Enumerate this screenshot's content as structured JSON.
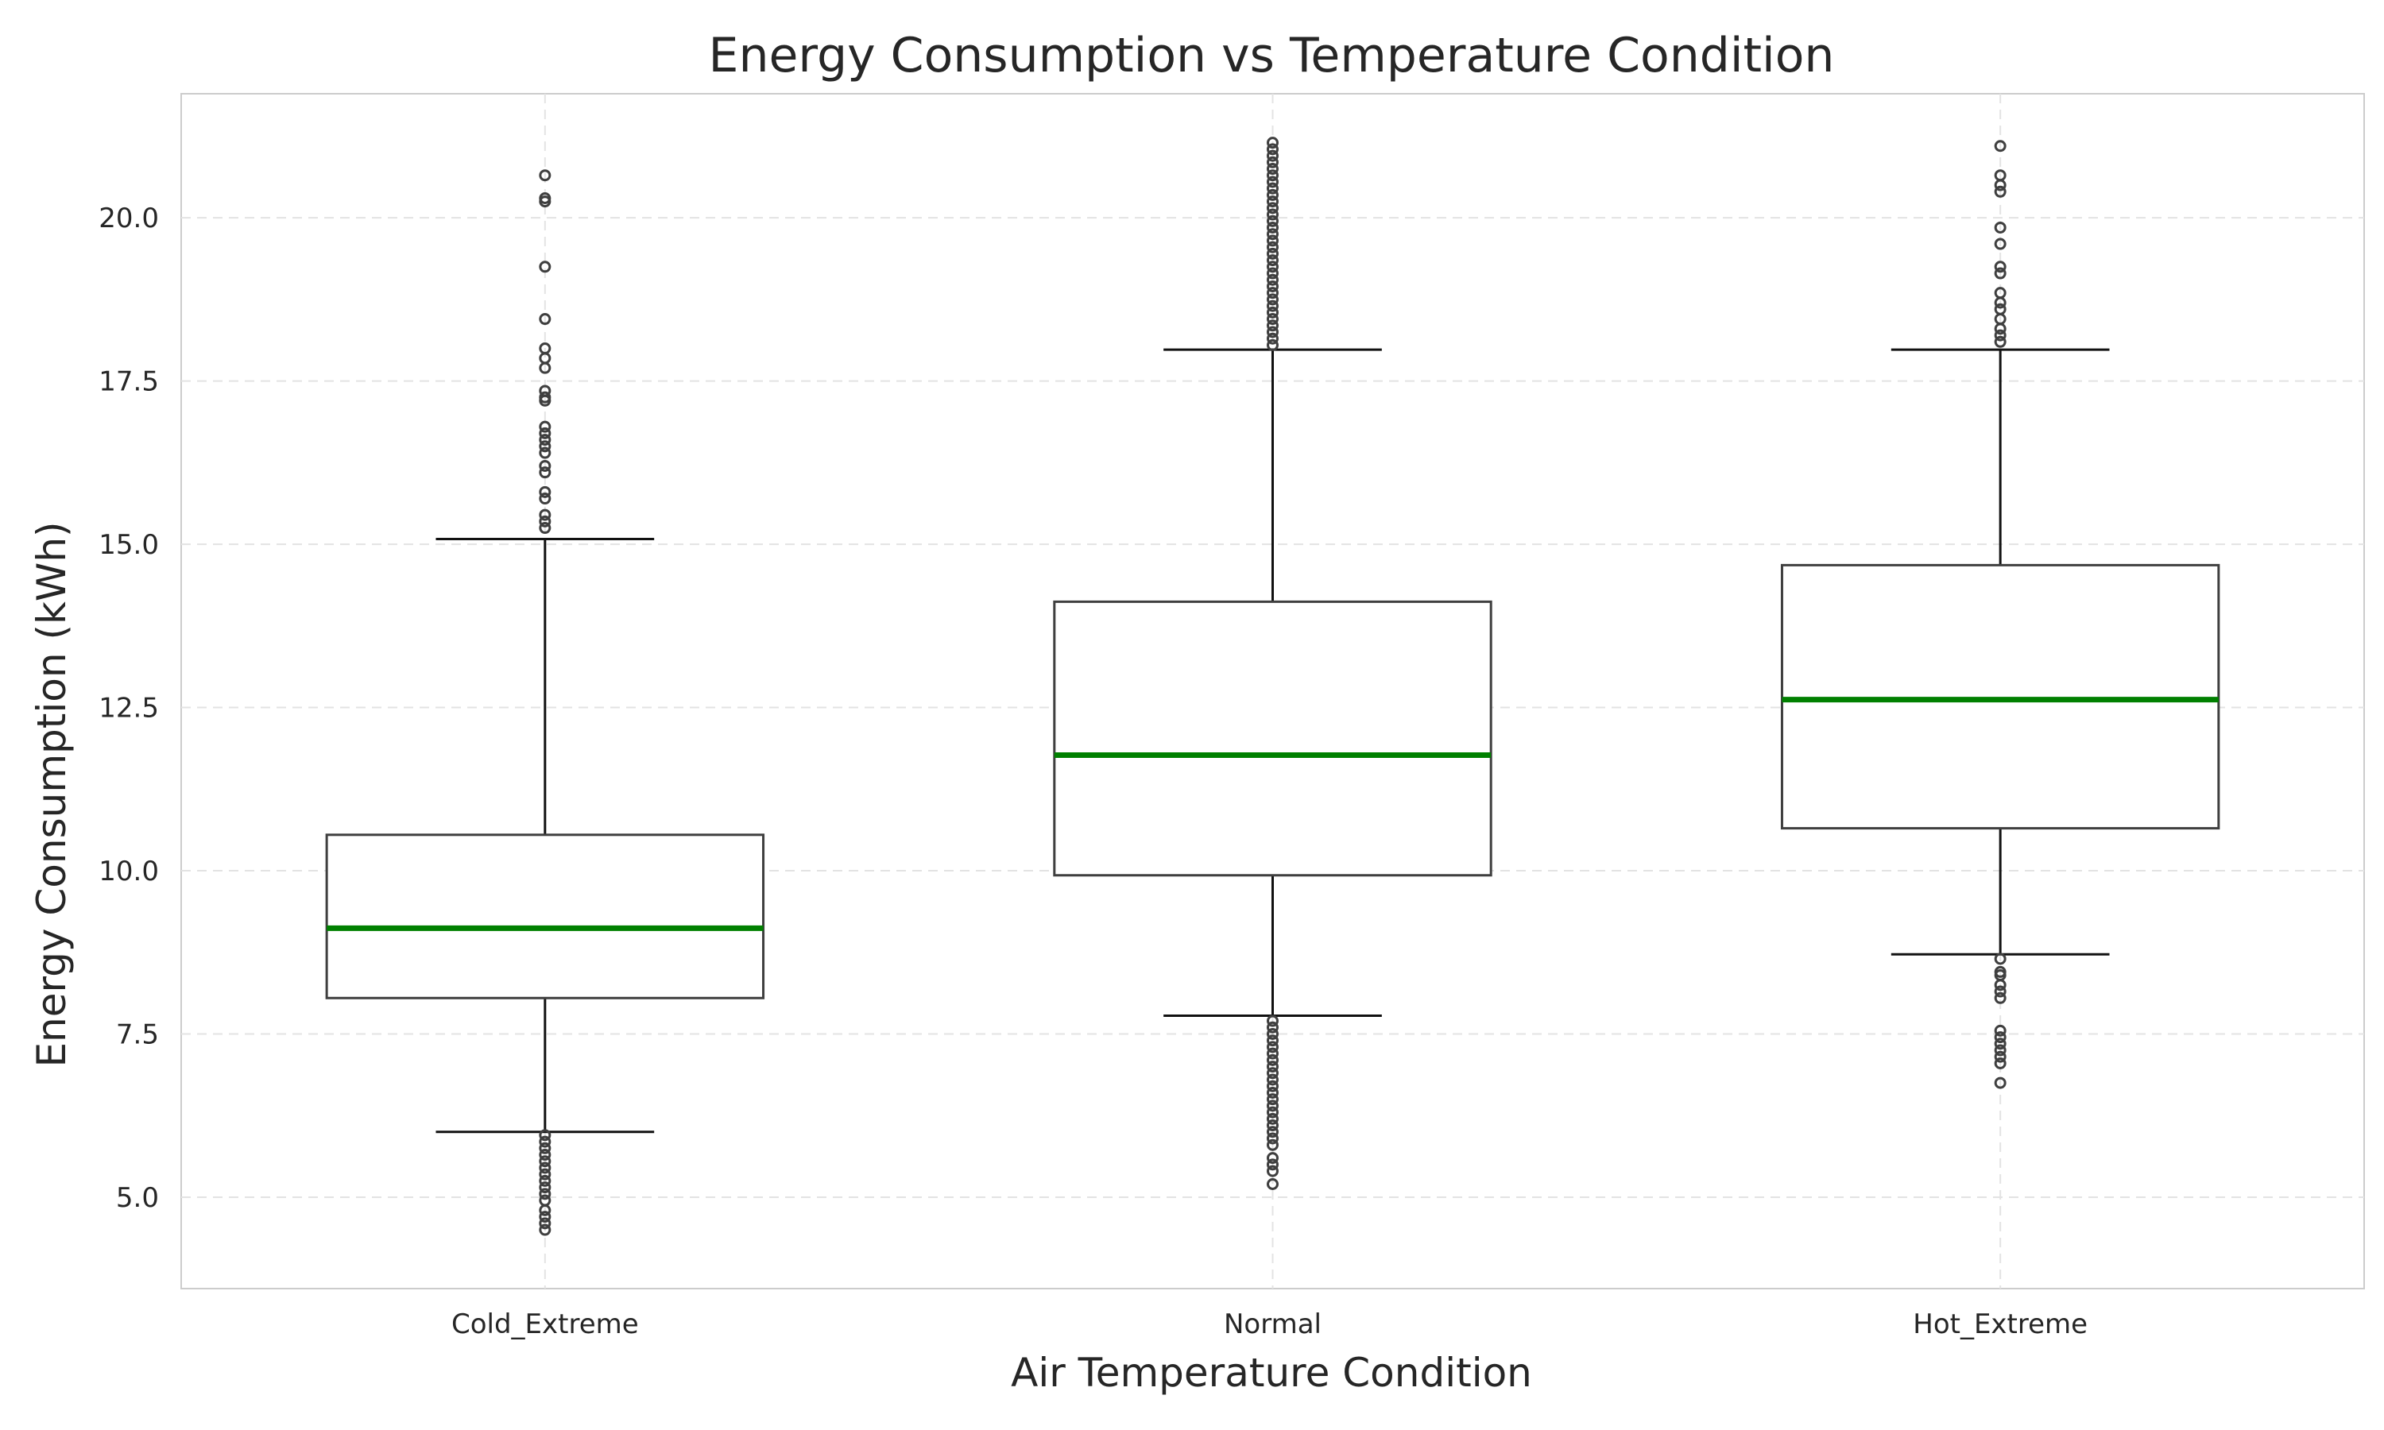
{
  "chart_data": {
    "type": "box",
    "title": "Energy Consumption vs Temperature Condition",
    "xlabel": "Air Temperature Condition",
    "ylabel": "Energy Consumption (kWh)",
    "categories": [
      "Cold_Extreme",
      "Normal",
      "Hot_Extreme"
    ],
    "ylim": [
      3.6,
      21.9
    ],
    "yticks": [
      5.0,
      7.5,
      10.0,
      12.5,
      15.0,
      17.5,
      20.0
    ],
    "ytick_labels": [
      "5.0",
      "7.5",
      "10.0",
      "12.5",
      "15.0",
      "17.5",
      "20.0"
    ],
    "grid": true,
    "median_color": "#008000",
    "box_edge_color": "#3f3f3f",
    "boxes": [
      {
        "category": "Cold_Extreme",
        "whisker_low": 6.0,
        "q1": 8.05,
        "median": 9.12,
        "q3": 10.55,
        "whisker_high": 15.08,
        "outliers": [
          20.65,
          20.3,
          20.25,
          19.25,
          18.45,
          18.0,
          17.85,
          17.7,
          17.35,
          17.25,
          17.2,
          16.8,
          16.7,
          16.6,
          16.5,
          16.4,
          16.2,
          16.1,
          15.8,
          15.7,
          15.45,
          15.35,
          15.25,
          5.95,
          5.85,
          5.75,
          5.65,
          5.55,
          5.45,
          5.35,
          5.25,
          5.15,
          5.05,
          4.95,
          4.8,
          4.7,
          4.6,
          4.5
        ]
      },
      {
        "category": "Normal",
        "whisker_low": 7.78,
        "q1": 9.93,
        "median": 11.77,
        "q3": 14.12,
        "whisker_high": 17.98,
        "outliers": [
          21.15,
          21.05,
          20.95,
          20.85,
          20.75,
          20.65,
          20.55,
          20.45,
          20.35,
          20.25,
          20.15,
          20.05,
          19.95,
          19.85,
          19.75,
          19.65,
          19.55,
          19.45,
          19.35,
          19.25,
          19.15,
          19.05,
          18.95,
          18.85,
          18.75,
          18.65,
          18.55,
          18.45,
          18.35,
          18.25,
          18.15,
          18.05,
          7.7,
          7.6,
          7.5,
          7.4,
          7.3,
          7.2,
          7.1,
          7.0,
          6.9,
          6.8,
          6.7,
          6.6,
          6.5,
          6.4,
          6.3,
          6.2,
          6.1,
          6.0,
          5.9,
          5.8,
          5.6,
          5.5,
          5.4,
          5.2
        ]
      },
      {
        "category": "Hot_Extreme",
        "whisker_low": 8.72,
        "q1": 10.65,
        "median": 12.62,
        "q3": 14.68,
        "whisker_high": 17.98,
        "outliers": [
          21.1,
          20.65,
          20.5,
          20.4,
          19.85,
          19.6,
          19.25,
          19.15,
          18.85,
          18.7,
          18.6,
          18.45,
          18.3,
          18.2,
          18.1,
          8.65,
          8.45,
          8.4,
          8.25,
          8.15,
          8.05,
          7.55,
          7.45,
          7.35,
          7.25,
          7.15,
          7.05,
          6.75
        ]
      }
    ]
  }
}
